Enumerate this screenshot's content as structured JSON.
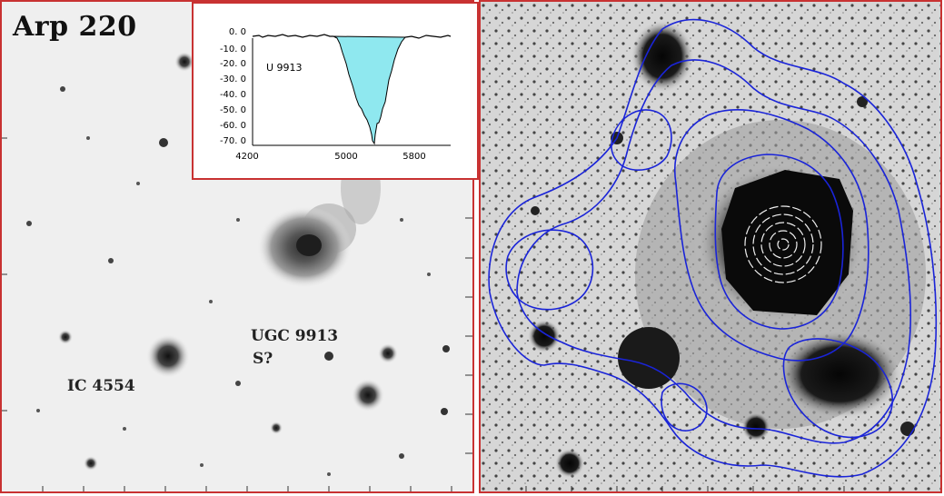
{
  "left_panel": {
    "title": "Arp 220",
    "labels": {
      "ugc": "UGC 9913",
      "ugc_type": "S?",
      "ic": "IC 4554"
    }
  },
  "inset_spectrum": {
    "series_label": "U 9913",
    "fill_color": "#8fe8ef",
    "x_ticks": [
      "4200",
      "5000",
      "5800"
    ],
    "y_ticks": [
      "0. 0",
      "-10. 0",
      "-20. 0",
      "-30. 0",
      "-40. 0",
      "-50. 0",
      "-60. 0",
      "-70. 0"
    ]
  },
  "right_panel": {
    "contour_color": "#1a24d8"
  }
}
